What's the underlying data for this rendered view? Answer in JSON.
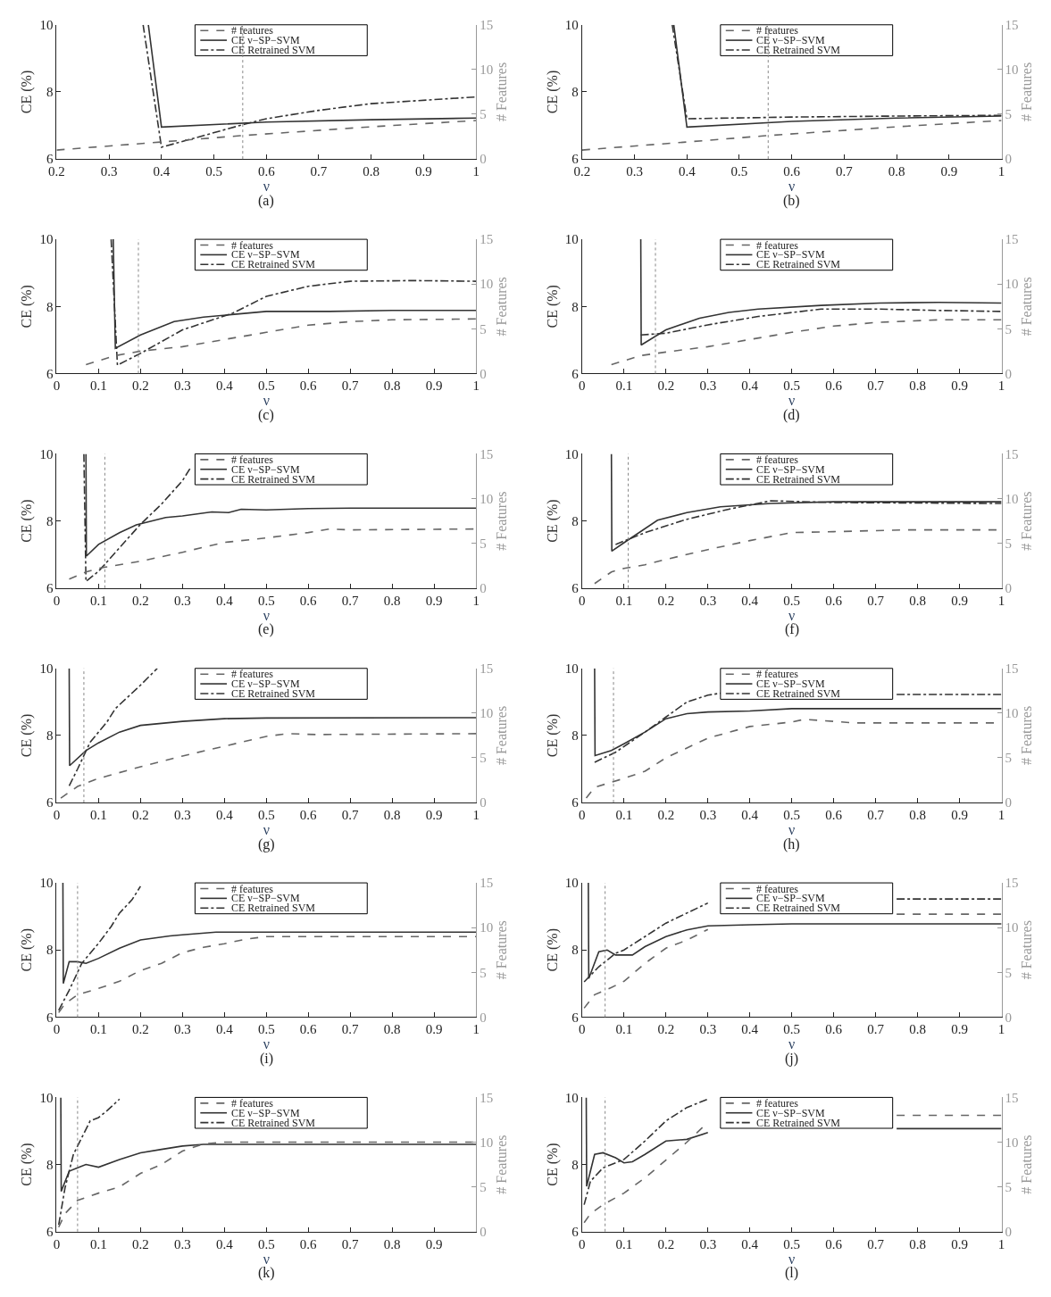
{
  "chart_data": [
    {
      "type": "line",
      "title": "(a)",
      "xlabel": "ν",
      "ylabel": "CE (%)",
      "y2label": "# Features",
      "xlim": [
        0.2,
        1
      ],
      "xticks": [
        0.2,
        0.3,
        0.4,
        0.5,
        0.6,
        0.7,
        0.8,
        0.9,
        1
      ],
      "ylim": [
        6,
        10
      ],
      "yticks": [
        6,
        8,
        10
      ],
      "y2lim": [
        0,
        15
      ],
      "y2ticks": [
        0,
        5,
        10,
        15
      ],
      "legend": "top",
      "ref_lines": [
        {
          "axis": "x",
          "value": 0.555,
          "line_style": "dotted",
          "color": "#888888"
        }
      ],
      "series": [
        {
          "name": "# features",
          "color": "#666666",
          "line_style": "dashed",
          "axis": "y2",
          "x": [
            0.2,
            0.4,
            0.55,
            0.8,
            1
          ],
          "values": [
            1,
            1.9,
            2.6,
            3.6,
            4.3
          ]
        },
        {
          "name": "CE ν−SP−SVM",
          "color": "#333333",
          "line_style": "solid",
          "x": [
            0.375,
            0.4,
            0.6,
            0.8,
            1
          ],
          "values": [
            10,
            6.95,
            7.1,
            7.17,
            7.22
          ]
        },
        {
          "name": "CE Retrained SVM",
          "color": "#333333",
          "line_style": "dashdot",
          "x": [
            0.365,
            0.4,
            0.55,
            0.6,
            0.7,
            0.8,
            1
          ],
          "values": [
            10,
            6.35,
            7.0,
            7.2,
            7.45,
            7.65,
            7.85
          ]
        }
      ]
    },
    {
      "type": "line",
      "title": "(b)",
      "xlabel": "ν",
      "ylabel": "CE (%)",
      "y2label": "# Features",
      "xlim": [
        0.2,
        1
      ],
      "xticks": [
        0.2,
        0.3,
        0.4,
        0.5,
        0.6,
        0.7,
        0.8,
        0.9,
        1
      ],
      "ylim": [
        6,
        10
      ],
      "yticks": [
        6,
        8,
        10
      ],
      "y2lim": [
        0,
        15
      ],
      "y2ticks": [
        0,
        5,
        10,
        15
      ],
      "legend": "top",
      "ref_lines": [
        {
          "axis": "x",
          "value": 0.555,
          "line_style": "dotted",
          "color": "#888888"
        }
      ],
      "series": [
        {
          "name": "# features",
          "color": "#666666",
          "line_style": "dashed",
          "axis": "y2",
          "x": [
            0.2,
            0.4,
            0.55,
            0.8,
            1
          ],
          "values": [
            1,
            1.9,
            2.6,
            3.6,
            4.3
          ]
        },
        {
          "name": "CE ν−SP−SVM",
          "color": "#333333",
          "line_style": "solid",
          "x": [
            0.375,
            0.4,
            0.6,
            0.8,
            1
          ],
          "values": [
            10,
            6.95,
            7.12,
            7.22,
            7.28
          ]
        },
        {
          "name": "CE Retrained SVM",
          "color": "#333333",
          "line_style": "dashdot",
          "x": [
            0.372,
            0.4,
            0.6,
            0.8,
            1
          ],
          "values": [
            10,
            7.2,
            7.25,
            7.28,
            7.3
          ]
        }
      ]
    },
    {
      "type": "line",
      "title": "(c)",
      "xlabel": "ν",
      "ylabel": "CE (%)",
      "y2label": "# Features",
      "xlim": [
        0,
        1
      ],
      "xticks": [
        0,
        0.1,
        0.2,
        0.3,
        0.4,
        0.5,
        0.6,
        0.7,
        0.8,
        0.9,
        1
      ],
      "ylim": [
        6,
        10
      ],
      "yticks": [
        6,
        8,
        10
      ],
      "y2lim": [
        0,
        15
      ],
      "y2ticks": [
        0,
        5,
        10,
        15
      ],
      "legend": "top",
      "ref_lines": [
        {
          "axis": "x",
          "value": 0.195,
          "line_style": "dotted",
          "color": "#888888"
        }
      ],
      "series": [
        {
          "name": "# features",
          "color": "#666666",
          "line_style": "dashed",
          "axis": "y2",
          "x": [
            0.07,
            0.14,
            0.2,
            0.3,
            0.4,
            0.5,
            0.6,
            0.7,
            0.8,
            1
          ],
          "values": [
            1,
            2,
            2.5,
            3,
            3.8,
            4.6,
            5.4,
            5.8,
            6.0,
            6.1
          ]
        },
        {
          "name": "CE ν−SP−SVM",
          "color": "#333333",
          "line_style": "solid",
          "x": [
            0.135,
            0.14,
            0.2,
            0.28,
            0.35,
            0.5,
            0.65,
            0.8,
            1
          ],
          "values": [
            10,
            6.75,
            7.15,
            7.55,
            7.68,
            7.85,
            7.85,
            7.88,
            7.88
          ]
        },
        {
          "name": "CE Retrained SVM",
          "color": "#333333",
          "line_style": "dashdot",
          "x": [
            0.13,
            0.145,
            0.2,
            0.3,
            0.42,
            0.5,
            0.6,
            0.7,
            0.85,
            1
          ],
          "values": [
            10,
            6.25,
            6.6,
            7.3,
            7.8,
            8.3,
            8.6,
            8.75,
            8.77,
            8.75
          ]
        }
      ]
    },
    {
      "type": "line",
      "title": "(d)",
      "xlabel": "ν",
      "ylabel": "CE (%)",
      "y2label": "# Features",
      "xlim": [
        0,
        1
      ],
      "xticks": [
        0,
        0.1,
        0.2,
        0.3,
        0.4,
        0.5,
        0.6,
        0.7,
        0.8,
        0.9,
        1
      ],
      "ylim": [
        6,
        10
      ],
      "yticks": [
        6,
        8,
        10
      ],
      "y2lim": [
        0,
        15
      ],
      "y2ticks": [
        0,
        5,
        10,
        15
      ],
      "legend": "top",
      "ref_lines": [
        {
          "axis": "x",
          "value": 0.175,
          "line_style": "dotted",
          "color": "#888888"
        }
      ],
      "series": [
        {
          "name": "# features",
          "color": "#666666",
          "line_style": "dashed",
          "axis": "y2",
          "x": [
            0.07,
            0.14,
            0.2,
            0.3,
            0.4,
            0.5,
            0.6,
            0.7,
            0.85,
            1
          ],
          "values": [
            1,
            2,
            2.4,
            3,
            3.8,
            4.6,
            5.3,
            5.7,
            6.0,
            6.0
          ]
        },
        {
          "name": "CE ν−SP−SVM",
          "color": "#333333",
          "line_style": "solid",
          "x": [
            0.14,
            0.141,
            0.2,
            0.28,
            0.35,
            0.42,
            0.57,
            0.71,
            0.85,
            1
          ],
          "values": [
            10,
            6.85,
            7.3,
            7.65,
            7.82,
            7.92,
            8.03,
            8.1,
            8.12,
            8.1
          ]
        },
        {
          "name": "CE Retrained SVM",
          "color": "#333333",
          "line_style": "dashdot",
          "x": [
            0.14,
            0.2,
            0.3,
            0.42,
            0.57,
            0.71,
            0.85,
            1
          ],
          "values": [
            7.15,
            7.2,
            7.45,
            7.7,
            7.92,
            7.92,
            7.88,
            7.85
          ]
        }
      ]
    },
    {
      "type": "line",
      "title": "(e)",
      "xlabel": "ν",
      "ylabel": "CE (%)",
      "y2label": "# Features",
      "xlim": [
        0,
        1
      ],
      "xticks": [
        0,
        0.1,
        0.2,
        0.3,
        0.4,
        0.5,
        0.6,
        0.7,
        0.8,
        0.9,
        1
      ],
      "ylim": [
        6,
        10
      ],
      "yticks": [
        6,
        8,
        10
      ],
      "y2lim": [
        0,
        15
      ],
      "y2ticks": [
        0,
        5,
        10,
        15
      ],
      "legend": "top",
      "ref_lines": [
        {
          "axis": "x",
          "value": 0.115,
          "line_style": "dotted",
          "color": "#888888"
        }
      ],
      "series": [
        {
          "name": "# features",
          "color": "#666666",
          "line_style": "dashed",
          "axis": "y2",
          "x": [
            0.03,
            0.07,
            0.1,
            0.2,
            0.3,
            0.4,
            0.5,
            0.6,
            0.65,
            0.7,
            1
          ],
          "values": [
            1,
            1.8,
            2.2,
            3,
            4,
            5.1,
            5.6,
            6.2,
            6.6,
            6.5,
            6.6
          ]
        },
        {
          "name": "CE ν−SP−SVM",
          "color": "#333333",
          "line_style": "solid",
          "x": [
            0.07,
            0.071,
            0.1,
            0.15,
            0.19,
            0.26,
            0.3,
            0.37,
            0.41,
            0.44,
            0.5,
            0.6,
            0.7,
            1
          ],
          "values": [
            10,
            6.95,
            7.3,
            7.65,
            7.88,
            8.1,
            8.15,
            8.27,
            8.25,
            8.35,
            8.33,
            8.37,
            8.38,
            8.38
          ]
        },
        {
          "name": "CE Retrained SVM",
          "color": "#333333",
          "line_style": "dashdot",
          "x": [
            0.065,
            0.07,
            0.1,
            0.15,
            0.2,
            0.25,
            0.3,
            0.32
          ],
          "values": [
            10,
            6.2,
            6.5,
            7.2,
            7.9,
            8.5,
            9.2,
            9.6
          ]
        }
      ]
    },
    {
      "type": "line",
      "title": "(f)",
      "xlabel": "ν",
      "ylabel": "CE (%)",
      "y2label": "# Features",
      "xlim": [
        0,
        1
      ],
      "xticks": [
        0,
        0.1,
        0.2,
        0.3,
        0.4,
        0.5,
        0.6,
        0.7,
        0.8,
        0.9,
        1
      ],
      "ylim": [
        6,
        10
      ],
      "yticks": [
        6,
        8,
        10
      ],
      "y2lim": [
        0,
        15
      ],
      "y2ticks": [
        0,
        5,
        10,
        15
      ],
      "legend": "top",
      "ref_lines": [
        {
          "axis": "x",
          "value": 0.11,
          "line_style": "dotted",
          "color": "#888888"
        }
      ],
      "series": [
        {
          "name": "# features",
          "color": "#666666",
          "line_style": "dashed",
          "axis": "y2",
          "x": [
            0.03,
            0.07,
            0.1,
            0.15,
            0.2,
            0.3,
            0.4,
            0.5,
            0.6,
            0.77,
            1
          ],
          "values": [
            0.5,
            1.8,
            2.2,
            2.6,
            3.2,
            4.3,
            5.3,
            6.2,
            6.3,
            6.5,
            6.5
          ]
        },
        {
          "name": "CE ν−SP−SVM",
          "color": "#333333",
          "line_style": "solid",
          "x": [
            0.07,
            0.071,
            0.1,
            0.18,
            0.25,
            0.33,
            0.45,
            0.6,
            1
          ],
          "values": [
            10,
            7.1,
            7.35,
            8.02,
            8.25,
            8.42,
            8.52,
            8.57,
            8.57
          ]
        },
        {
          "name": "CE Retrained SVM",
          "color": "#333333",
          "line_style": "dashdot",
          "x": [
            0.08,
            0.15,
            0.25,
            0.35,
            0.45,
            0.6,
            1
          ],
          "values": [
            7.3,
            7.65,
            8.05,
            8.35,
            8.6,
            8.55,
            8.52
          ]
        }
      ]
    },
    {
      "type": "line",
      "title": "(g)",
      "xlabel": "ν",
      "ylabel": "CE (%)",
      "y2label": "# Features",
      "xlim": [
        0,
        1
      ],
      "xticks": [
        0,
        0.1,
        0.2,
        0.3,
        0.4,
        0.5,
        0.6,
        0.7,
        0.8,
        0.9,
        1
      ],
      "ylim": [
        6,
        10
      ],
      "yticks": [
        6,
        8,
        10
      ],
      "y2lim": [
        0,
        15
      ],
      "y2ticks": [
        0,
        5,
        10,
        15
      ],
      "legend": "top",
      "ref_lines": [
        {
          "axis": "x",
          "value": 0.065,
          "line_style": "dotted",
          "color": "#888888"
        }
      ],
      "series": [
        {
          "name": "# features",
          "color": "#666666",
          "line_style": "dashed",
          "axis": "y2",
          "x": [
            0.01,
            0.05,
            0.1,
            0.2,
            0.3,
            0.4,
            0.5,
            0.55,
            0.62,
            1
          ],
          "values": [
            0.5,
            1.8,
            2.7,
            4,
            5.2,
            6.3,
            7.4,
            7.7,
            7.6,
            7.7
          ]
        },
        {
          "name": "CE ν−SP−SVM",
          "color": "#333333",
          "line_style": "solid",
          "x": [
            0.03,
            0.031,
            0.07,
            0.1,
            0.15,
            0.2,
            0.3,
            0.4,
            0.5,
            1
          ],
          "values": [
            10,
            7.1,
            7.55,
            7.78,
            8.1,
            8.3,
            8.42,
            8.5,
            8.52,
            8.53
          ]
        },
        {
          "name": "CE Retrained SVM",
          "color": "#333333",
          "line_style": "dashdot",
          "x": [
            0.03,
            0.05,
            0.08,
            0.12,
            0.14,
            0.2,
            0.24
          ],
          "values": [
            6.5,
            7.0,
            7.8,
            8.4,
            8.8,
            9.5,
            10
          ]
        }
      ]
    },
    {
      "type": "line",
      "title": "(h)",
      "xlabel": "ν",
      "ylabel": "CE (%)",
      "y2label": "# Features",
      "xlim": [
        0,
        1
      ],
      "xticks": [
        0,
        0.1,
        0.2,
        0.3,
        0.4,
        0.5,
        0.6,
        0.7,
        0.8,
        0.9,
        1
      ],
      "ylim": [
        6,
        10
      ],
      "yticks": [
        6,
        8,
        10
      ],
      "y2lim": [
        0,
        15
      ],
      "y2ticks": [
        0,
        5,
        10,
        15
      ],
      "legend": "top",
      "ref_lines": [
        {
          "axis": "x",
          "value": 0.075,
          "line_style": "dotted",
          "color": "#888888"
        }
      ],
      "series": [
        {
          "name": "# features",
          "color": "#666666",
          "line_style": "dashed",
          "axis": "y2",
          "x": [
            0.01,
            0.03,
            0.1,
            0.15,
            0.2,
            0.3,
            0.4,
            0.5,
            0.53,
            0.65,
            1
          ],
          "values": [
            0.5,
            1.7,
            2.7,
            3.5,
            5,
            7.2,
            8.5,
            9,
            9.3,
            8.9,
            8.9
          ]
        },
        {
          "name": "CE ν−SP−SVM",
          "color": "#333333",
          "line_style": "solid",
          "x": [
            0.03,
            0.031,
            0.07,
            0.1,
            0.15,
            0.2,
            0.25,
            0.3,
            0.4,
            0.5,
            1
          ],
          "values": [
            10,
            7.4,
            7.55,
            7.75,
            8.1,
            8.5,
            8.65,
            8.7,
            8.73,
            8.8,
            8.8
          ]
        },
        {
          "name": "CE Retrained SVM",
          "color": "#333333",
          "line_style": "dashdot",
          "x": [
            0.03,
            0.08,
            0.15,
            0.2,
            0.25,
            0.3,
            0.35,
            0.5,
            0.75,
            1
          ],
          "values": [
            7.2,
            7.5,
            8.1,
            8.55,
            9.0,
            9.2,
            9.3,
            null,
            9.22,
            9.22
          ]
        }
      ]
    },
    {
      "type": "line",
      "title": "(i)",
      "xlabel": "ν",
      "ylabel": "CE (%)",
      "y2label": "# Features",
      "xlim": [
        0,
        1
      ],
      "xticks": [
        0,
        0.1,
        0.2,
        0.3,
        0.4,
        0.5,
        0.6,
        0.7,
        0.8,
        0.9,
        1
      ],
      "ylim": [
        6,
        10
      ],
      "yticks": [
        6,
        8,
        10
      ],
      "y2lim": [
        0,
        15
      ],
      "y2ticks": [
        0,
        5,
        10,
        15
      ],
      "legend": "top",
      "ref_lines": [
        {
          "axis": "x",
          "value": 0.05,
          "line_style": "dotted",
          "color": "#888888"
        }
      ],
      "series": [
        {
          "name": "# features",
          "color": "#666666",
          "line_style": "dashed",
          "axis": "y2",
          "x": [
            0.005,
            0.02,
            0.05,
            0.1,
            0.15,
            0.2,
            0.25,
            0.3,
            0.35,
            0.4,
            0.45,
            0.5,
            1
          ],
          "values": [
            0.5,
            1.5,
            2.5,
            3.2,
            4,
            5.2,
            6,
            7.2,
            7.8,
            8.2,
            8.7,
            9,
            9
          ]
        },
        {
          "name": "CE ν−SP−SVM",
          "color": "#333333",
          "line_style": "solid",
          "x": [
            0.015,
            0.016,
            0.03,
            0.05,
            0.07,
            0.1,
            0.15,
            0.2,
            0.27,
            0.3,
            0.38,
            0.5,
            1
          ],
          "values": [
            10,
            7.0,
            7.65,
            7.65,
            7.6,
            7.75,
            8.05,
            8.3,
            8.42,
            8.45,
            8.53,
            8.53,
            8.53
          ]
        },
        {
          "name": "CE Retrained SVM",
          "color": "#333333",
          "line_style": "dashdot",
          "x": [
            0.005,
            0.03,
            0.06,
            0.1,
            0.13,
            0.15,
            0.18,
            0.2
          ],
          "values": [
            6.2,
            6.8,
            7.6,
            8.2,
            8.7,
            9.1,
            9.5,
            9.9
          ]
        }
      ]
    },
    {
      "type": "line",
      "title": "(j)",
      "xlabel": "ν",
      "ylabel": "CE (%)",
      "y2label": "# Features",
      "xlim": [
        0,
        1
      ],
      "xticks": [
        0,
        0.1,
        0.2,
        0.3,
        0.4,
        0.5,
        0.6,
        0.7,
        0.8,
        0.9,
        1
      ],
      "ylim": [
        6,
        10
      ],
      "yticks": [
        6,
        8,
        10
      ],
      "y2lim": [
        0,
        15
      ],
      "y2ticks": [
        0,
        5,
        10,
        15
      ],
      "legend": "top",
      "ref_lines": [
        {
          "axis": "x",
          "value": 0.055,
          "line_style": "dotted",
          "color": "#888888"
        }
      ],
      "series": [
        {
          "name": "# features",
          "color": "#666666",
          "line_style": "dashed",
          "axis": "y2",
          "x": [
            0.005,
            0.03,
            0.07,
            0.1,
            0.15,
            0.2,
            0.25,
            0.3,
            0.5,
            0.75,
            1
          ],
          "values": [
            1,
            2.5,
            3.3,
            4,
            6,
            7.7,
            8.6,
            9.8,
            null,
            11.5,
            11.5
          ]
        },
        {
          "name": "CE ν−SP−SVM",
          "color": "#333333",
          "line_style": "solid",
          "x": [
            0.015,
            0.016,
            0.04,
            0.06,
            0.08,
            0.12,
            0.15,
            0.2,
            0.25,
            0.3,
            0.4,
            0.5,
            1
          ],
          "values": [
            10,
            7.15,
            7.95,
            8.0,
            7.85,
            7.85,
            8.1,
            8.4,
            8.6,
            8.72,
            8.75,
            8.78,
            8.78
          ]
        },
        {
          "name": "CE Retrained SVM",
          "color": "#333333",
          "line_style": "dashdot",
          "x": [
            0.005,
            0.04,
            0.08,
            0.1,
            0.15,
            0.2,
            0.25,
            0.3,
            0.5,
            0.75,
            1
          ],
          "values": [
            7.05,
            7.5,
            7.9,
            8.0,
            8.4,
            8.8,
            9.1,
            9.4,
            null,
            9.52,
            9.52
          ]
        }
      ]
    },
    {
      "type": "line",
      "title": "(k)",
      "xlabel": "ν",
      "ylabel": "CE (%)",
      "y2label": "# Features",
      "xlim": [
        0,
        1
      ],
      "xticks": [
        0,
        0.1,
        0.2,
        0.3,
        0.4,
        0.5,
        0.6,
        0.7,
        0.8,
        0.9
      ],
      "ylim": [
        6,
        10
      ],
      "yticks": [
        6,
        8,
        10
      ],
      "y2lim": [
        0,
        15
      ],
      "y2ticks": [
        0,
        5,
        10,
        15
      ],
      "legend": "top",
      "ref_lines": [
        {
          "axis": "x",
          "value": 0.05,
          "line_style": "dotted",
          "color": "#888888"
        }
      ],
      "series": [
        {
          "name": "# features",
          "color": "#666666",
          "line_style": "dashed",
          "axis": "y2",
          "x": [
            0.005,
            0.02,
            0.05,
            0.1,
            0.15,
            0.2,
            0.25,
            0.3,
            0.35,
            0.4,
            1
          ],
          "values": [
            0.5,
            2,
            3.5,
            4.3,
            5,
            6.5,
            7.5,
            9,
            9.8,
            10,
            10
          ]
        },
        {
          "name": "CE ν−SP−SVM",
          "color": "#333333",
          "line_style": "solid",
          "x": [
            0.01,
            0.011,
            0.03,
            0.05,
            0.07,
            0.1,
            0.15,
            0.2,
            0.25,
            0.3,
            0.35,
            1
          ],
          "values": [
            10,
            7.2,
            7.8,
            7.9,
            8.0,
            7.92,
            8.15,
            8.35,
            8.45,
            8.55,
            8.6,
            8.6
          ]
        },
        {
          "name": "CE Retrained SVM",
          "color": "#333333",
          "line_style": "dashdot",
          "x": [
            0.005,
            0.02,
            0.04,
            0.06,
            0.08,
            0.1,
            0.12,
            0.15
          ],
          "values": [
            6.2,
            7.3,
            8.3,
            8.8,
            9.3,
            9.4,
            9.6,
            9.95
          ]
        }
      ]
    },
    {
      "type": "line",
      "title": "(l)",
      "xlabel": "ν",
      "ylabel": "CE (%)",
      "y2label": "# Features",
      "xlim": [
        0,
        1
      ],
      "xticks": [
        0,
        0.1,
        0.2,
        0.3,
        0.4,
        0.5,
        0.6,
        0.7,
        0.8,
        0.9,
        1
      ],
      "ylim": [
        6,
        10
      ],
      "yticks": [
        6,
        8,
        10
      ],
      "y2lim": [
        0,
        15
      ],
      "y2ticks": [
        0,
        5,
        10,
        15
      ],
      "legend": "top",
      "ref_lines": [
        {
          "axis": "x",
          "value": 0.055,
          "line_style": "dotted",
          "color": "#888888"
        }
      ],
      "series": [
        {
          "name": "# features",
          "color": "#666666",
          "line_style": "dashed",
          "axis": "y2",
          "x": [
            0.005,
            0.02,
            0.05,
            0.1,
            0.15,
            0.2,
            0.25,
            0.3,
            0.5,
            0.75,
            1
          ],
          "values": [
            1,
            2,
            3,
            4.3,
            6,
            8,
            10,
            12.2,
            null,
            13,
            13
          ]
        },
        {
          "name": "CE ν−SP−SVM",
          "color": "#333333",
          "line_style": "solid",
          "x": [
            0.01,
            0.011,
            0.03,
            0.05,
            0.08,
            0.1,
            0.12,
            0.15,
            0.2,
            0.25,
            0.3,
            0.5,
            0.75,
            1
          ],
          "values": [
            10,
            7.35,
            8.3,
            8.35,
            8.2,
            8.05,
            8.08,
            8.3,
            8.7,
            8.75,
            8.95,
            null,
            9.07,
            9.07
          ]
        },
        {
          "name": "CE Retrained SVM",
          "color": "#333333",
          "line_style": "dashdot",
          "x": [
            0.005,
            0.02,
            0.05,
            0.1,
            0.15,
            0.2,
            0.25,
            0.3
          ],
          "values": [
            6.8,
            7.5,
            7.9,
            8.15,
            8.7,
            9.3,
            9.7,
            9.95
          ]
        }
      ]
    }
  ]
}
